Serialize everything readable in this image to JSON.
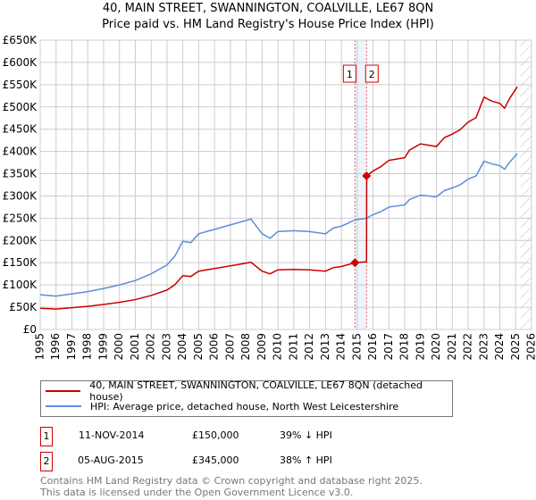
{
  "chart_data": {
    "type": "line",
    "title": "40, MAIN STREET, SWANNINGTON, COALVILLE, LE67 8QN",
    "subtitle": "Price paid vs. HM Land Registry's House Price Index (HPI)",
    "xlim": [
      1995,
      2026
    ],
    "ylim": [
      0,
      650000
    ],
    "x_ticks": [
      "1995",
      "1996",
      "1997",
      "1998",
      "1999",
      "2000",
      "2001",
      "2002",
      "2003",
      "2004",
      "2005",
      "2006",
      "2007",
      "2008",
      "2009",
      "2010",
      "2011",
      "2012",
      "2013",
      "2014",
      "2015",
      "2016",
      "2017",
      "2018",
      "2019",
      "2020",
      "2021",
      "2022",
      "2023",
      "2024",
      "2025",
      "2026"
    ],
    "y_ticks": [
      {
        "v": 0,
        "label": "£0"
      },
      {
        "v": 50000,
        "label": "£50K"
      },
      {
        "v": 100000,
        "label": "£100K"
      },
      {
        "v": 150000,
        "label": "£150K"
      },
      {
        "v": 200000,
        "label": "£200K"
      },
      {
        "v": 250000,
        "label": "£250K"
      },
      {
        "v": 300000,
        "label": "£300K"
      },
      {
        "v": 350000,
        "label": "£350K"
      },
      {
        "v": 400000,
        "label": "£400K"
      },
      {
        "v": 450000,
        "label": "£450K"
      },
      {
        "v": 500000,
        "label": "£500K"
      },
      {
        "v": 550000,
        "label": "£550K"
      },
      {
        "v": 600000,
        "label": "£600K"
      },
      {
        "v": 650000,
        "label": "£650K"
      }
    ],
    "grid": true,
    "forecast_hatch_from": 2025.3,
    "series": [
      {
        "name": "40, MAIN STREET, SWANNINGTON, COALVILLE, LE67 8QN (detached house)",
        "color": "#cc0000",
        "x": [
          1995,
          1996,
          1997,
          1998,
          1999,
          2000,
          2001,
          2002,
          2003,
          2003.5,
          2004,
          2004.5,
          2005,
          2006,
          2007,
          2007.5,
          2008.3,
          2009,
          2009.5,
          2010,
          2011,
          2012,
          2013,
          2013.5,
          2014,
          2014.86,
          2015.59,
          2015.6,
          2016,
          2016.5,
          2017,
          2018,
          2018.3,
          2019,
          2020,
          2020.5,
          2021,
          2021.5,
          2022,
          2022.5,
          2023,
          2023.5,
          2024,
          2024.3,
          2024.6,
          2025.1
        ],
        "y": [
          47600,
          45800,
          48800,
          51900,
          56100,
          61000,
          67100,
          76300,
          88500,
          100700,
          120800,
          119000,
          131000,
          137000,
          143000,
          146000,
          151000,
          131000,
          125000,
          134000,
          135000,
          134000,
          131000,
          139000,
          141500,
          150000,
          152000,
          345000,
          356000,
          366000,
          380000,
          386000,
          403000,
          417000,
          411000,
          431000,
          439000,
          449000,
          466000,
          476000,
          522000,
          513000,
          508000,
          497000,
          518000,
          545000
        ]
      },
      {
        "name": "HPI: Average price, detached house, North West Leicestershire",
        "color": "#5b8fd6",
        "x": [
          1995,
          1996,
          1997,
          1998,
          1999,
          2000,
          2001,
          2002,
          2003,
          2003.5,
          2004,
          2004.5,
          2005,
          2006,
          2007,
          2007.5,
          2008.3,
          2009,
          2009.5,
          2010,
          2011,
          2012,
          2013,
          2013.5,
          2014,
          2014.86,
          2015.6,
          2016,
          2016.5,
          2017,
          2018,
          2018.3,
          2019,
          2020,
          2020.5,
          2021,
          2021.5,
          2022,
          2022.5,
          2023,
          2023.5,
          2024,
          2024.3,
          2024.6,
          2025.1
        ],
        "y": [
          78000,
          75000,
          80000,
          85000,
          92000,
          100000,
          110000,
          125000,
          145000,
          165000,
          198000,
          195000,
          215000,
          225000,
          235000,
          240000,
          248000,
          215000,
          205000,
          220000,
          222000,
          220000,
          215000,
          228000,
          232000,
          246000,
          250000,
          258000,
          265000,
          275000,
          280000,
          292000,
          302000,
          298000,
          312000,
          318000,
          325000,
          338000,
          345000,
          378000,
          372000,
          368000,
          360000,
          375000,
          395000
        ]
      }
    ],
    "sales": [
      {
        "label": "1",
        "x": 2014.86,
        "y": 150000,
        "date": "11-NOV-2014",
        "price": "£150,000",
        "hpi": "39% ↓ HPI"
      },
      {
        "label": "2",
        "x": 2015.59,
        "y": 345000,
        "date": "05-AUG-2015",
        "price": "£345,000",
        "hpi": "38% ↑ HPI"
      }
    ]
  },
  "footer": {
    "line1": "Contains HM Land Registry data © Crown copyright and database right 2025.",
    "line2": "This data is licensed under the Open Government Licence v3.0."
  }
}
